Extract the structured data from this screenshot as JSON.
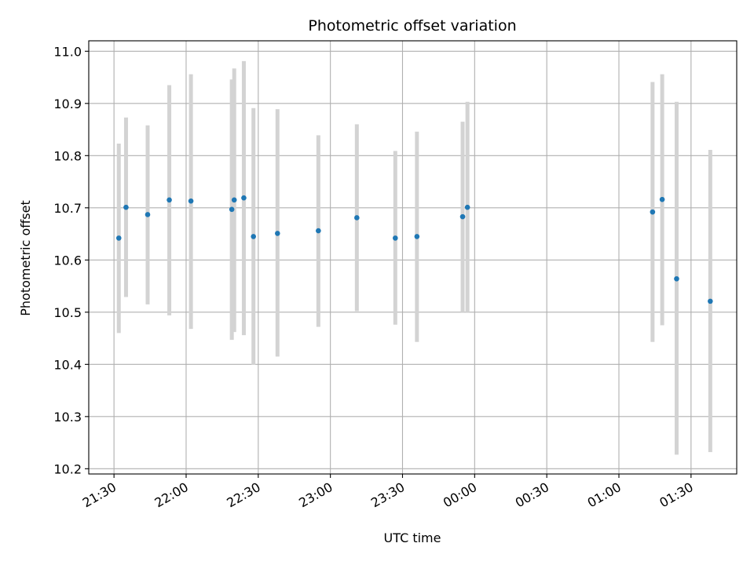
{
  "chart_data": {
    "type": "scatter",
    "title": "Photometric offset variation",
    "xlabel": "UTC time",
    "ylabel": "Photometric offset",
    "x_ticks": [
      "21:30",
      "22:00",
      "22:30",
      "23:00",
      "23:30",
      "00:00",
      "00:30",
      "01:00",
      "01:30"
    ],
    "x_tick_minutes": [
      0,
      30,
      60,
      90,
      120,
      150,
      180,
      210,
      240
    ],
    "x_unit": "minutes after 21:30 UTC",
    "xlim": [
      -10.5,
      259
    ],
    "y_ticks": [
      "10.2",
      "10.3",
      "10.4",
      "10.5",
      "10.6",
      "10.7",
      "10.8",
      "10.9",
      "11.0"
    ],
    "ylim": [
      10.19,
      11.02
    ],
    "grid": true,
    "colors": {
      "point": "#1f77b4",
      "errorbar": "#d3d3d3",
      "grid": "#b0b0b0"
    },
    "series": [
      {
        "name": "",
        "points": [
          {
            "x": 2,
            "y": 10.642,
            "ylow": 10.46,
            "yhigh": 10.823
          },
          {
            "x": 5,
            "y": 10.701,
            "ylow": 10.529,
            "yhigh": 10.873
          },
          {
            "x": 14,
            "y": 10.687,
            "ylow": 10.515,
            "yhigh": 10.858
          },
          {
            "x": 23,
            "y": 10.715,
            "ylow": 10.494,
            "yhigh": 10.935
          },
          {
            "x": 32,
            "y": 10.713,
            "ylow": 10.468,
            "yhigh": 10.956
          },
          {
            "x": 49,
            "y": 10.697,
            "ylow": 10.447,
            "yhigh": 10.946
          },
          {
            "x": 50,
            "y": 10.715,
            "ylow": 10.462,
            "yhigh": 10.967
          },
          {
            "x": 54,
            "y": 10.719,
            "ylow": 10.456,
            "yhigh": 10.981
          },
          {
            "x": 58,
            "y": 10.645,
            "ylow": 10.399,
            "yhigh": 10.891
          },
          {
            "x": 68,
            "y": 10.651,
            "ylow": 10.415,
            "yhigh": 10.889
          },
          {
            "x": 85,
            "y": 10.656,
            "ylow": 10.472,
            "yhigh": 10.839
          },
          {
            "x": 101,
            "y": 10.681,
            "ylow": 10.502,
            "yhigh": 10.86
          },
          {
            "x": 117,
            "y": 10.642,
            "ylow": 10.476,
            "yhigh": 10.809
          },
          {
            "x": 126,
            "y": 10.645,
            "ylow": 10.443,
            "yhigh": 10.846
          },
          {
            "x": 145,
            "y": 10.683,
            "ylow": 10.5,
            "yhigh": 10.865
          },
          {
            "x": 147,
            "y": 10.701,
            "ylow": 10.5,
            "yhigh": 10.903
          },
          {
            "x": 224,
            "y": 10.692,
            "ylow": 10.443,
            "yhigh": 10.941
          },
          {
            "x": 228,
            "y": 10.716,
            "ylow": 10.475,
            "yhigh": 10.956
          },
          {
            "x": 234,
            "y": 10.564,
            "ylow": 10.227,
            "yhigh": 10.903
          },
          {
            "x": 248,
            "y": 10.521,
            "ylow": 10.232,
            "yhigh": 10.811
          }
        ]
      }
    ]
  }
}
